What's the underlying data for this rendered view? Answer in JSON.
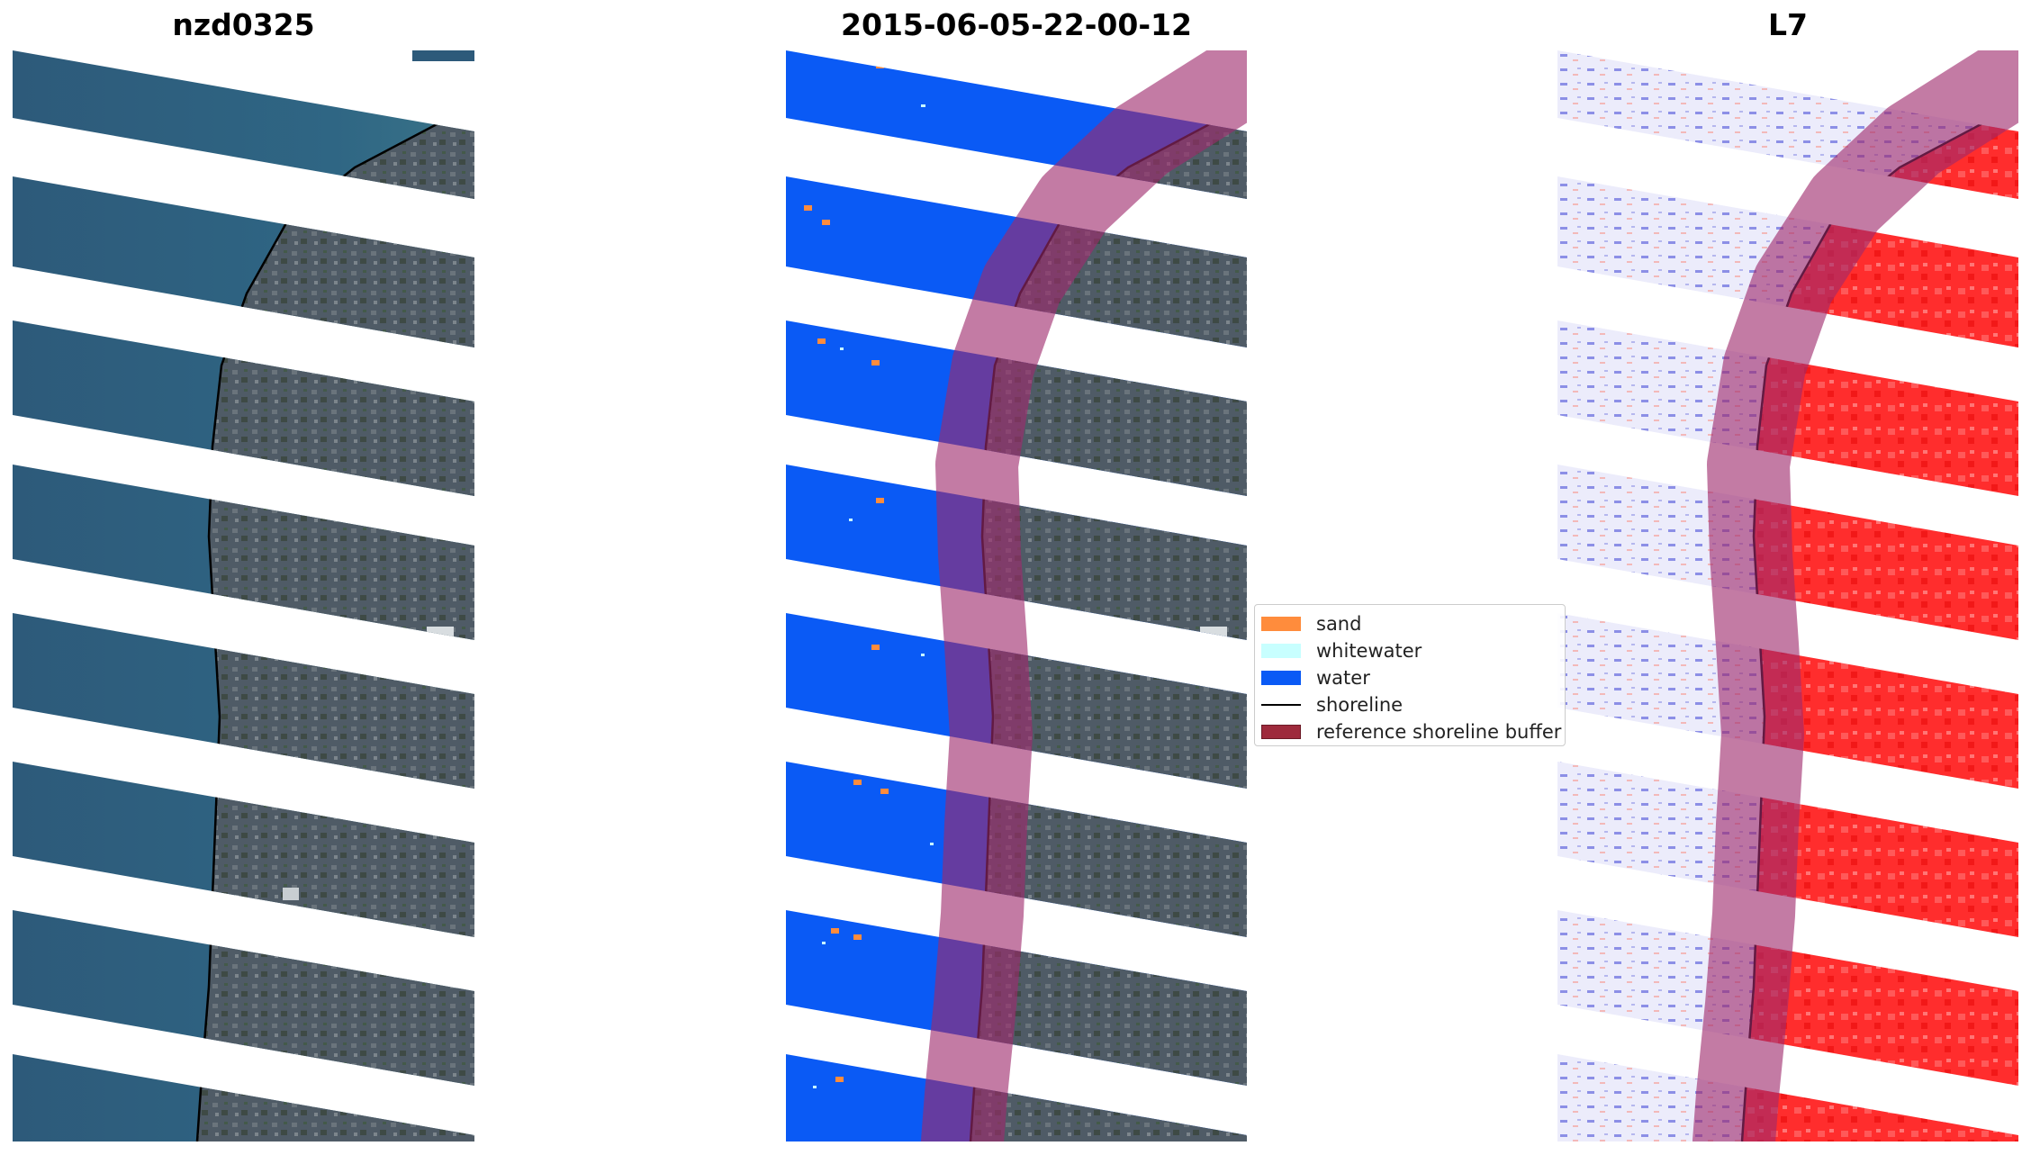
{
  "panels": [
    {
      "title": "nzd0325"
    },
    {
      "title": "2015-06-05-22-00-12"
    },
    {
      "title": "L7"
    }
  ],
  "colors": {
    "sand": "#ff8c3c",
    "whitewater": "#c8ffff",
    "water": "#0a5af5",
    "shoreline": "#000000",
    "buffer": "#9e2a3c",
    "land_rgb": "#4d5a66",
    "sea_rgb": "#2d5f80",
    "mndwi_land": "#ff2a2a",
    "mndwi_water": "#eeeefc"
  },
  "legend": {
    "items": [
      {
        "label": "sand",
        "color": "#ff8c3c",
        "type": "patch"
      },
      {
        "label": "whitewater",
        "color": "#c8ffff",
        "type": "patch"
      },
      {
        "label": "water",
        "color": "#0a5af5",
        "type": "patch"
      },
      {
        "label": "shoreline",
        "color": "#000000",
        "type": "line"
      },
      {
        "label": "reference shoreline buffer",
        "color": "#9e2a3c",
        "type": "patch"
      }
    ]
  }
}
